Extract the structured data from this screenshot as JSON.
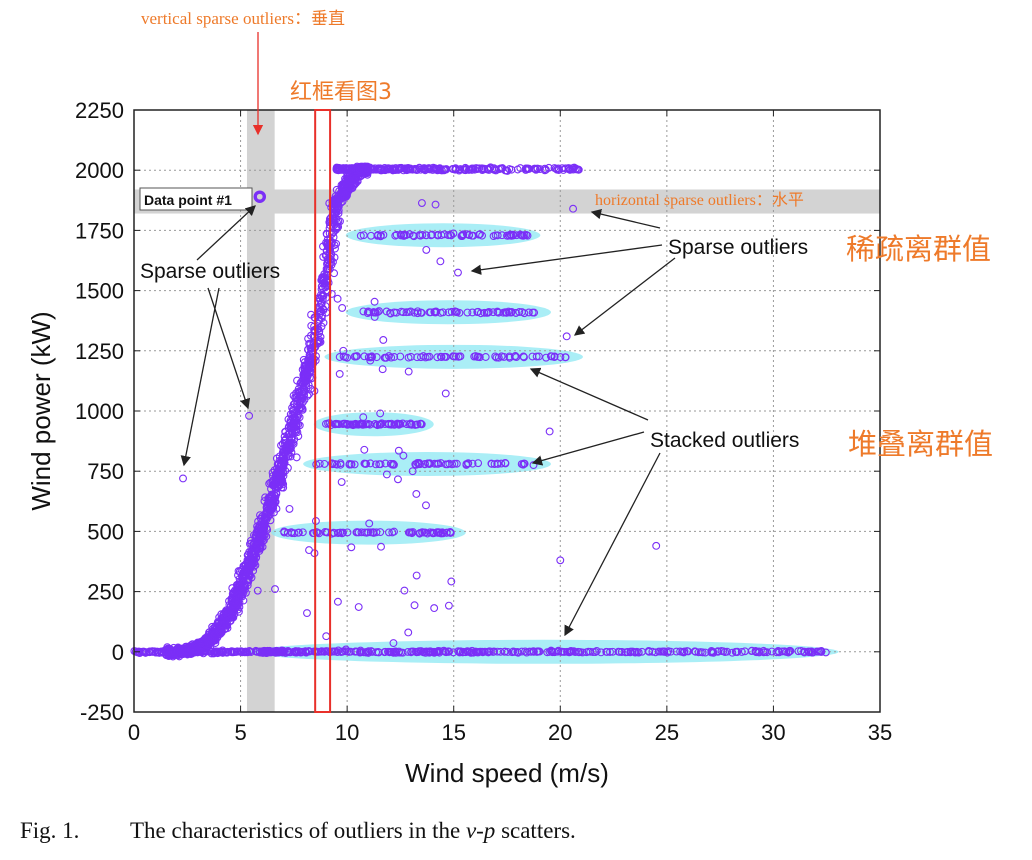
{
  "annotations": {
    "vertical_note": "vertical sparse outliers：垂直",
    "red_box_note": "红框看图3",
    "horizontal_note": "horizontal sparse outliers：水平",
    "sparse_cn": "稀疏离群值",
    "stacked_cn": "堆叠离群值"
  },
  "caption": {
    "number": "Fig. 1.",
    "text_before": "The characteristics of outliers in the ",
    "text_italic": "v-p",
    "text_after": " scatters."
  },
  "colors": {
    "points": "#7b2ff7",
    "band": "#d3d3d3",
    "stack_highlight": "#8ee8f3",
    "red_box": "#e8302a",
    "annotation": "#ee7a2a"
  },
  "chart_data": {
    "type": "scatter",
    "xlabel": "Wind speed (m/s)",
    "ylabel": "Wind power (kW)",
    "xlim": [
      0,
      35
    ],
    "ylim": [
      -250,
      2250
    ],
    "x_ticks": [
      0,
      5,
      10,
      15,
      20,
      25,
      30,
      35
    ],
    "y_ticks": [
      -250,
      0,
      250,
      500,
      750,
      1000,
      1250,
      1500,
      1750,
      2000,
      2250
    ],
    "grid": true,
    "power_curve": {
      "x": [
        2.5,
        3.5,
        4.5,
        5.5,
        6.5,
        7.5,
        8.5,
        9.0,
        9.5,
        10.5,
        12,
        16,
        20
      ],
      "y": [
        0,
        40,
        160,
        380,
        640,
        940,
        1300,
        1560,
        1860,
        2000,
        2010,
        2010,
        2005
      ]
    },
    "stacked_outliers": [
      {
        "power": 1730,
        "x_range": [
          10.5,
          18.5
        ]
      },
      {
        "power": 1410,
        "x_range": [
          10.5,
          19.0
        ]
      },
      {
        "power": 1225,
        "x_range": [
          9.5,
          20.5
        ]
      },
      {
        "power": 945,
        "x_range": [
          9.0,
          13.5
        ]
      },
      {
        "power": 780,
        "x_range": [
          8.5,
          19.0
        ]
      },
      {
        "power": 495,
        "x_range": [
          7.0,
          15.0
        ]
      },
      {
        "power": 0,
        "x_range": [
          6.0,
          32.5
        ]
      }
    ],
    "sparse_outliers": [
      {
        "x": 2.3,
        "y": 720
      },
      {
        "x": 5.9,
        "y": 1890
      },
      {
        "x": 5.4,
        "y": 980
      },
      {
        "x": 15.2,
        "y": 1575
      },
      {
        "x": 20.3,
        "y": 1310
      },
      {
        "x": 20.6,
        "y": 1840
      },
      {
        "x": 24.5,
        "y": 440
      },
      {
        "x": 20.0,
        "y": 380
      },
      {
        "x": 19.5,
        "y": 915
      }
    ],
    "vertical_band": {
      "x_range": [
        5.3,
        6.6
      ]
    },
    "horizontal_band": {
      "y_range": [
        1820,
        1920
      ]
    },
    "red_box": {
      "x_range": [
        8.5,
        9.2
      ],
      "y_range": [
        -250,
        2250
      ]
    },
    "labels": {
      "data_point": "Data point #1",
      "sparse_left": "Sparse outliers",
      "sparse_right": "Sparse outliers",
      "stacked": "Stacked outliers"
    },
    "legend": "none"
  }
}
